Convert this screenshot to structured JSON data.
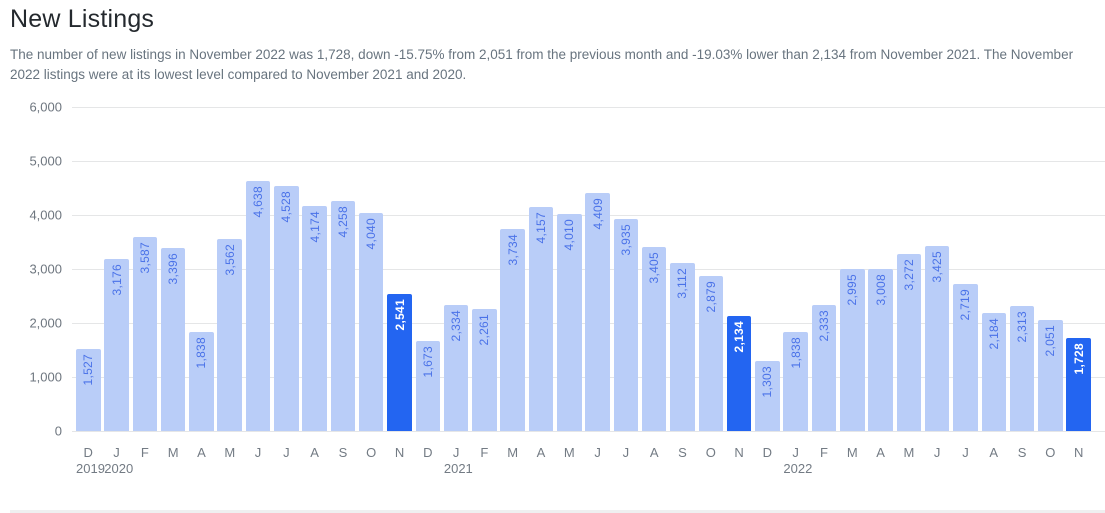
{
  "page": {
    "title": "New Listings",
    "description": "The number of new listings in November 2022 was 1,728, down -15.75% from 2,051 from the previous month and -19.03% lower than 2,134 from November 2021. The November 2022 listings were at its lowest level compared to November 2021 and 2020."
  },
  "chart_data": {
    "type": "bar",
    "title": "New Listings",
    "xlabel": "",
    "ylabel": "",
    "ylim": [
      0,
      6000
    ],
    "grid": true,
    "y_ticks": [
      "0",
      "1,000",
      "2,000",
      "3,000",
      "4,000",
      "5,000",
      "6,000"
    ],
    "y_tick_values": [
      0,
      1000,
      2000,
      3000,
      4000,
      5000,
      6000
    ],
    "categories": [
      "D",
      "J",
      "F",
      "M",
      "A",
      "M",
      "J",
      "J",
      "A",
      "S",
      "O",
      "N",
      "D",
      "J",
      "F",
      "M",
      "A",
      "M",
      "J",
      "J",
      "A",
      "S",
      "O",
      "N",
      "D",
      "J",
      "F",
      "M",
      "A",
      "M",
      "J",
      "J",
      "A",
      "S",
      "O",
      "N"
    ],
    "year_marks": {
      "0": "2019",
      "1": "2020",
      "13": "2021",
      "25": "2022"
    },
    "values": [
      1527,
      3176,
      3587,
      3396,
      1838,
      3562,
      4638,
      4528,
      4174,
      4258,
      4040,
      2541,
      1673,
      2334,
      2261,
      3734,
      4157,
      4010,
      4409,
      3935,
      3405,
      3112,
      2879,
      2134,
      1303,
      1838,
      2333,
      2995,
      3008,
      3272,
      3425,
      2719,
      2184,
      2313,
      2051,
      1728
    ],
    "value_labels": [
      "1,527",
      "3,176",
      "3,587",
      "3,396",
      "1,838",
      "3,562",
      "4,638",
      "4,528",
      "4,174",
      "4,258",
      "4,040",
      "2,541",
      "1,673",
      "2,334",
      "2,261",
      "3,734",
      "4,157",
      "4,010",
      "4,409",
      "3,935",
      "3,405",
      "3,112",
      "2,879",
      "2,134",
      "1,303",
      "1,838",
      "2,333",
      "2,995",
      "3,008",
      "3,272",
      "3,425",
      "2,719",
      "2,184",
      "2,313",
      "2,051",
      "1,728"
    ],
    "highlight_indices": [
      11,
      23,
      35
    ],
    "colors": {
      "bar": "#b9cdf8",
      "bar_highlight": "#2365f1",
      "bar_label": "#4a72e8",
      "bar_label_highlight": "#ffffff",
      "grid": "#e5e6e7",
      "axis_text": "#6e767f"
    }
  }
}
